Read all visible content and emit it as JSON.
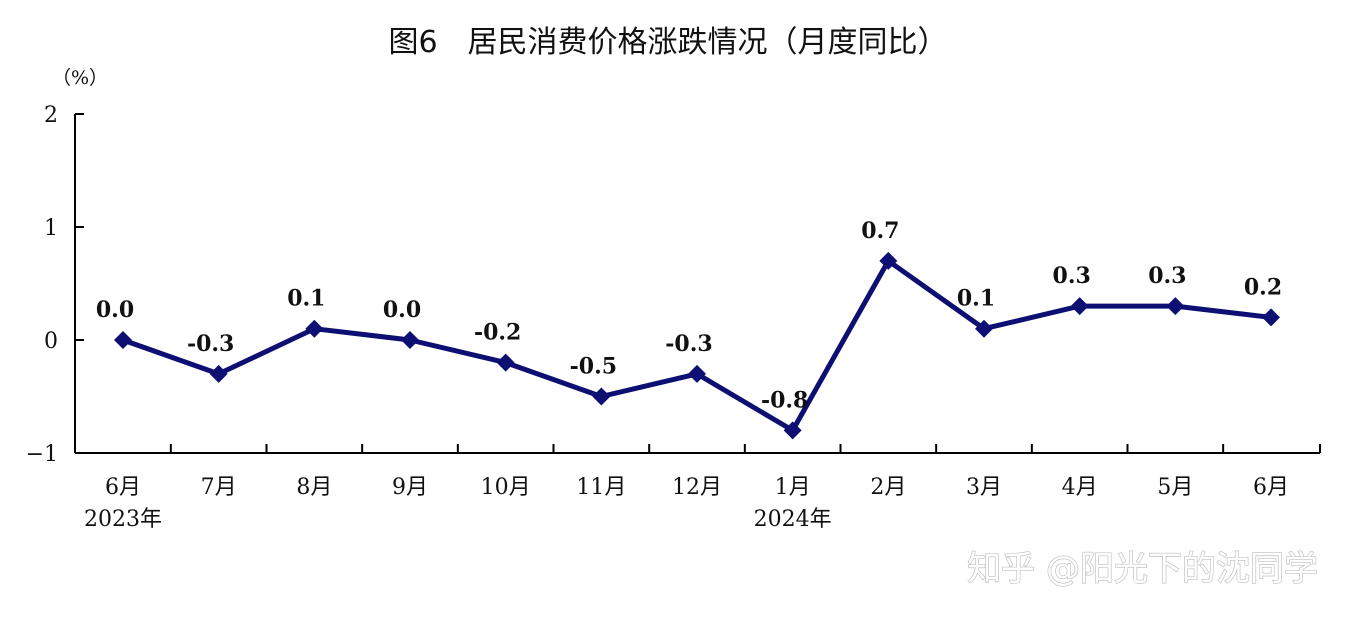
{
  "chart_data": {
    "type": "line",
    "title": "图6　居民消费价格涨跌情况（月度同比）",
    "ylabel": "（%）",
    "xlabel": "",
    "ylim": [
      -1,
      2
    ],
    "yticks": [
      "2",
      "1",
      "0",
      "−1"
    ],
    "grid": false,
    "categories": [
      "6月",
      "7月",
      "8月",
      "9月",
      "10月",
      "11月",
      "12月",
      "1月",
      "2月",
      "3月",
      "4月",
      "5月",
      "6月"
    ],
    "year_labels": [
      {
        "index": 0,
        "text": "2023年"
      },
      {
        "index": 7,
        "text": "2024年"
      }
    ],
    "series": [
      {
        "values": [
          0.0,
          -0.3,
          0.1,
          0.0,
          -0.2,
          -0.5,
          -0.3,
          -0.8,
          0.7,
          0.1,
          0.3,
          0.3,
          0.2
        ],
        "labels": [
          "0.0",
          "-0.3",
          "0.1",
          "0.0",
          "-0.2",
          "-0.5",
          "-0.3",
          "-0.8",
          "0.7",
          "0.1",
          "0.3",
          "0.3",
          "0.2"
        ],
        "color": "#0d0f73"
      }
    ]
  },
  "watermark": "知乎 @阳光下的沈同学",
  "colors": {
    "line": "#0d0f73",
    "axis": "#000000"
  }
}
